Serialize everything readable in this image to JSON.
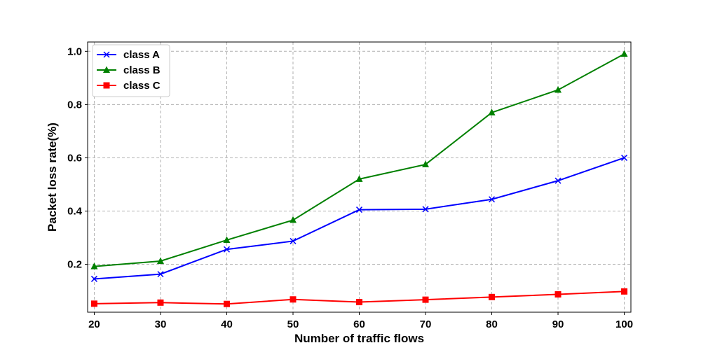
{
  "chart_data": {
    "type": "line",
    "title": "",
    "xlabel": "Number of traffic flows",
    "ylabel": "Packet loss rate(%)",
    "x": [
      20,
      30,
      40,
      50,
      60,
      70,
      80,
      90,
      100
    ],
    "xlim": [
      19,
      101
    ],
    "ylim": [
      0.02,
      1.035
    ],
    "xticks": [
      20,
      30,
      40,
      50,
      60,
      70,
      80,
      90,
      100
    ],
    "yticks": [
      0.2,
      0.4,
      0.6,
      0.8,
      1.0
    ],
    "ytick_labels": [
      "0.2",
      "0.4",
      "0.6",
      "0.8",
      "1.0"
    ],
    "grid": true,
    "legend_position": "top-left",
    "series": [
      {
        "name": "class A",
        "color": "#0000ff",
        "marker": "x",
        "values": [
          0.145,
          0.163,
          0.256,
          0.287,
          0.405,
          0.407,
          0.444,
          0.514,
          0.6
        ]
      },
      {
        "name": "class B",
        "color": "#008000",
        "marker": "triangle",
        "values": [
          0.192,
          0.212,
          0.291,
          0.366,
          0.52,
          0.575,
          0.77,
          0.855,
          0.99
        ]
      },
      {
        "name": "class C",
        "color": "#ff0000",
        "marker": "square",
        "values": [
          0.052,
          0.056,
          0.051,
          0.068,
          0.058,
          0.067,
          0.077,
          0.087,
          0.098
        ]
      }
    ]
  }
}
